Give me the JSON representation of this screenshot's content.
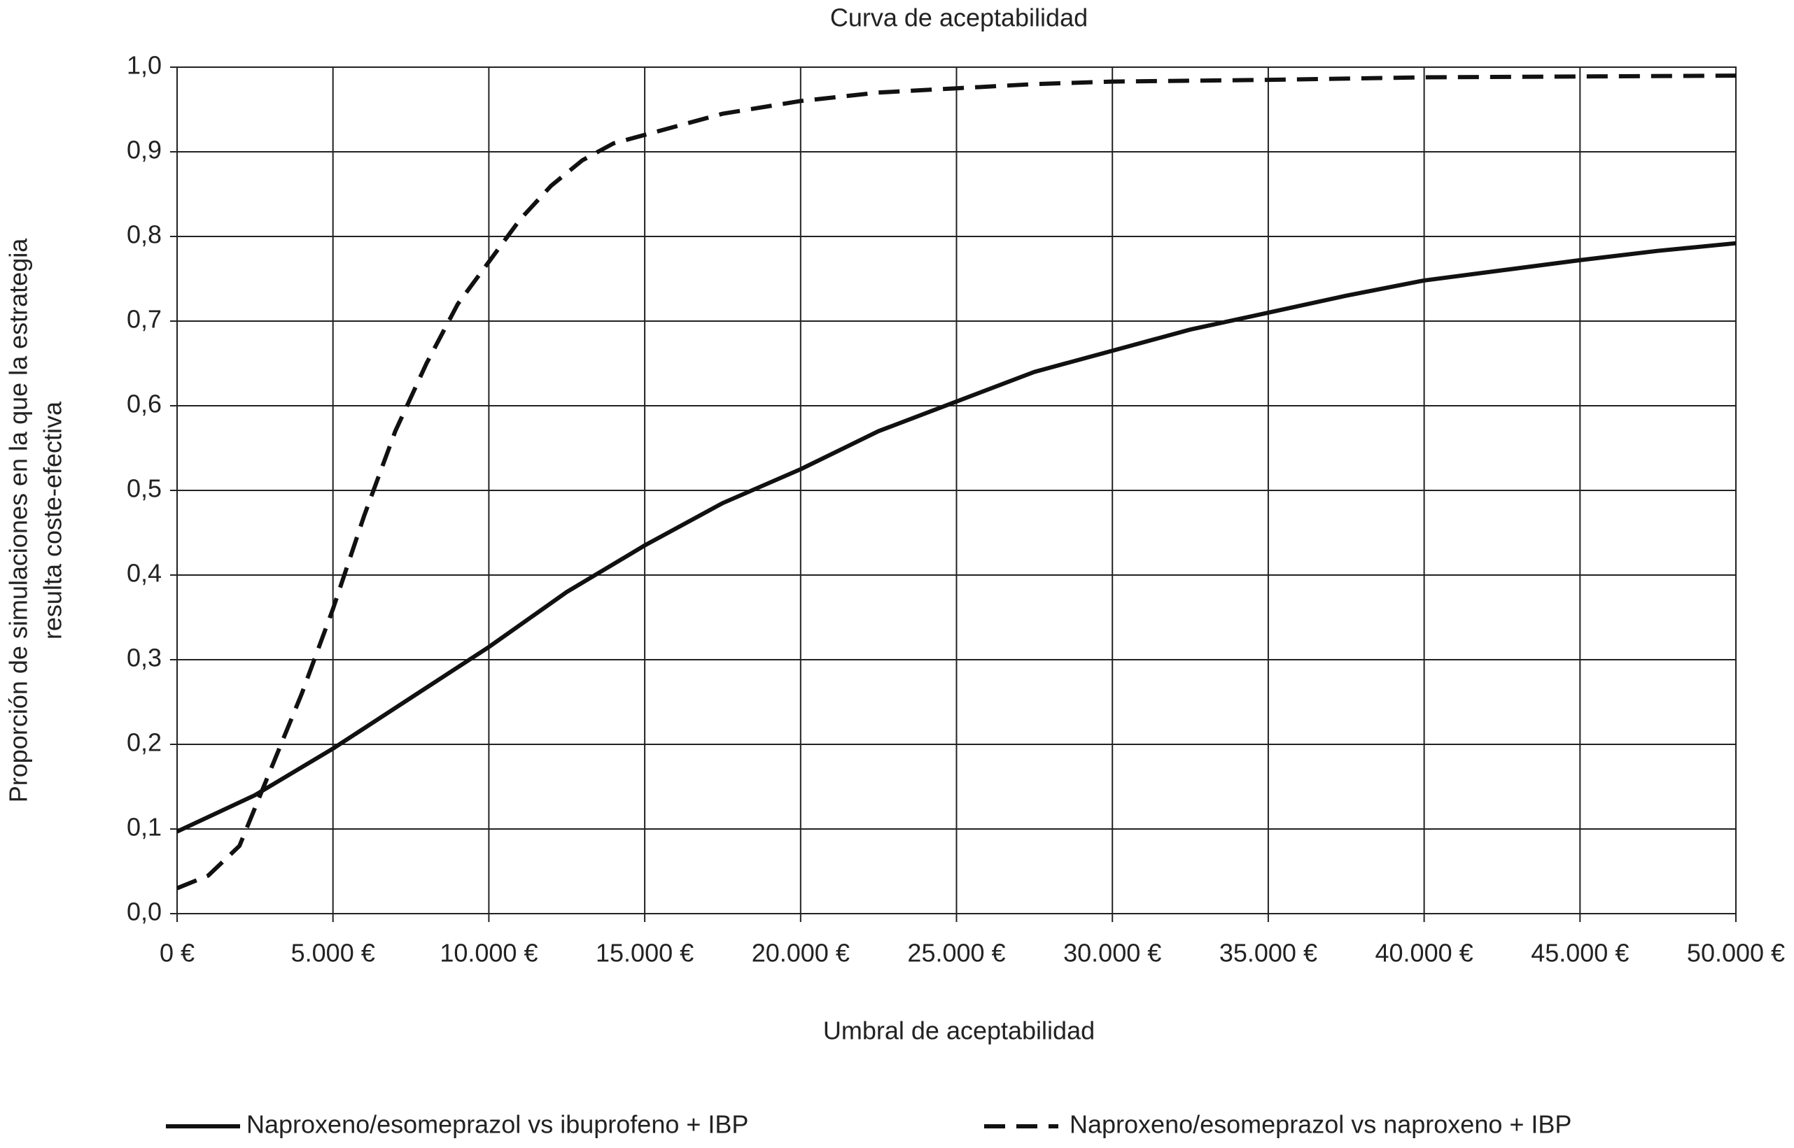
{
  "chart_data": {
    "type": "line",
    "title": "Curva de aceptabilidad",
    "xlabel": "Umbral de aceptabilidad",
    "ylabel": [
      "Proporción de simulaciones en la que la estrategia",
      "resulta coste-efectiva"
    ],
    "xlim": [
      0,
      50000
    ],
    "ylim": [
      0,
      1
    ],
    "xticks": [
      {
        "value": 0,
        "label": "0 €"
      },
      {
        "value": 5000,
        "label": "5.000 €"
      },
      {
        "value": 10000,
        "label": "10.000 €"
      },
      {
        "value": 15000,
        "label": "15.000 €"
      },
      {
        "value": 20000,
        "label": "20.000 €"
      },
      {
        "value": 25000,
        "label": "25.000 €"
      },
      {
        "value": 30000,
        "label": "30.000 €"
      },
      {
        "value": 35000,
        "label": "35.000 €"
      },
      {
        "value": 40000,
        "label": "40.000 €"
      },
      {
        "value": 45000,
        "label": "45.000 €"
      },
      {
        "value": 50000,
        "label": "50.000 €"
      }
    ],
    "yticks": [
      {
        "value": 0,
        "label": "0,0"
      },
      {
        "value": 0.1,
        "label": "0,1"
      },
      {
        "value": 0.2,
        "label": "0,2"
      },
      {
        "value": 0.3,
        "label": "0,3"
      },
      {
        "value": 0.4,
        "label": "0,4"
      },
      {
        "value": 0.5,
        "label": "0,5"
      },
      {
        "value": 0.6,
        "label": "0,6"
      },
      {
        "value": 0.7,
        "label": "0,7"
      },
      {
        "value": 0.8,
        "label": "0,8"
      },
      {
        "value": 0.9,
        "label": "0,9"
      },
      {
        "value": 1,
        "label": "1,0"
      }
    ],
    "grid": true,
    "series": [
      {
        "name": "Naproxeno/esomeprazol vs ibuprofeno + IBP",
        "color": "#111111",
        "dash": false,
        "x": [
          0,
          2500,
          5000,
          7500,
          10000,
          12500,
          15000,
          17500,
          20000,
          22500,
          25000,
          27500,
          30000,
          32500,
          35000,
          37500,
          40000,
          42500,
          45000,
          47500,
          50000
        ],
        "values": [
          0.097,
          0.14,
          0.195,
          0.255,
          0.315,
          0.38,
          0.435,
          0.485,
          0.525,
          0.57,
          0.605,
          0.64,
          0.665,
          0.69,
          0.71,
          0.73,
          0.748,
          0.76,
          0.772,
          0.783,
          0.792
        ]
      },
      {
        "name": "Naproxeno/esomeprazol vs naproxeno + IBP",
        "color": "#111111",
        "dash": true,
        "x": [
          0,
          1000,
          2000,
          3000,
          4000,
          5000,
          6000,
          7000,
          8000,
          9000,
          10000,
          11000,
          12000,
          13000,
          14000,
          15000,
          17500,
          20000,
          22500,
          25000,
          27500,
          30000,
          35000,
          40000,
          45000,
          50000
        ],
        "values": [
          0.03,
          0.045,
          0.08,
          0.17,
          0.26,
          0.36,
          0.47,
          0.57,
          0.65,
          0.72,
          0.77,
          0.82,
          0.86,
          0.89,
          0.91,
          0.92,
          0.945,
          0.96,
          0.97,
          0.975,
          0.98,
          0.983,
          0.985,
          0.988,
          0.989,
          0.99
        ]
      }
    ]
  }
}
